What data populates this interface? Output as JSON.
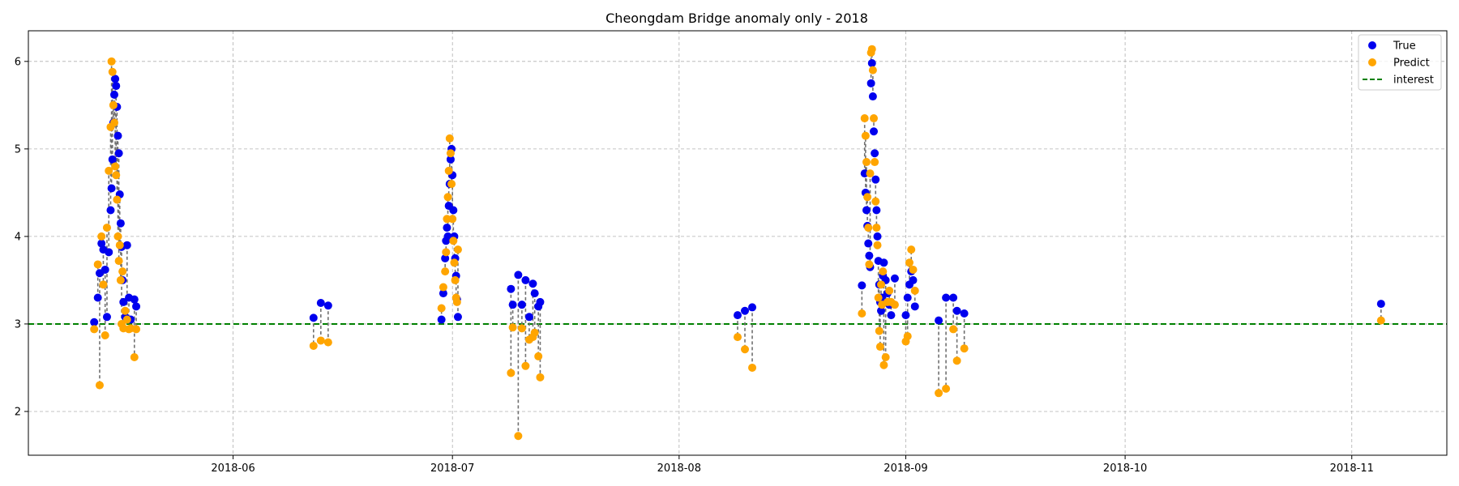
{
  "chart_data": {
    "type": "scatter",
    "title": "Cheongdam Bridge anomaly only - 2018",
    "xlabel": "",
    "ylabel": "",
    "x_axis_type": "date",
    "xlim": [
      "2018-05-04",
      "2018-11-14"
    ],
    "ylim": [
      1.5,
      6.35
    ],
    "x_ticks": [
      "2018-06-01",
      "2018-07-01",
      "2018-08-01",
      "2018-09-01",
      "2018-10-01",
      "2018-11-01"
    ],
    "x_tick_labels": [
      "2018-06",
      "2018-07",
      "2018-08",
      "2018-09",
      "2018-10",
      "2018-11"
    ],
    "y_ticks": [
      2,
      3,
      4,
      5,
      6
    ],
    "y_tick_labels": [
      "2",
      "3",
      "4",
      "5",
      "6"
    ],
    "grid": true,
    "legend_position": "top-right",
    "threshold": {
      "name": "interest",
      "value": 3.0,
      "color": "#008000",
      "style": "dashed"
    },
    "series": [
      {
        "name": "True",
        "color": "#0000ee",
        "points": [
          [
            "2018-05-13 00:00",
            3.02
          ],
          [
            "2018-05-13 12:00",
            3.3
          ],
          [
            "2018-05-13 18:00",
            3.58
          ],
          [
            "2018-05-14 00:00",
            3.92
          ],
          [
            "2018-05-14 06:00",
            3.85
          ],
          [
            "2018-05-14 12:00",
            3.62
          ],
          [
            "2018-05-14 18:00",
            3.08
          ],
          [
            "2018-05-15 00:00",
            3.82
          ],
          [
            "2018-05-15 06:00",
            4.3
          ],
          [
            "2018-05-15 09:00",
            4.55
          ],
          [
            "2018-05-15 12:00",
            4.88
          ],
          [
            "2018-05-15 15:00",
            5.3
          ],
          [
            "2018-05-15 18:00",
            5.62
          ],
          [
            "2018-05-15 21:00",
            5.8
          ],
          [
            "2018-05-16 00:00",
            5.72
          ],
          [
            "2018-05-16 03:00",
            5.48
          ],
          [
            "2018-05-16 06:00",
            5.15
          ],
          [
            "2018-05-16 09:00",
            4.95
          ],
          [
            "2018-05-16 12:00",
            4.48
          ],
          [
            "2018-05-16 15:00",
            4.15
          ],
          [
            "2018-05-16 18:00",
            3.88
          ],
          [
            "2018-05-16 21:00",
            3.5
          ],
          [
            "2018-05-17 00:00",
            3.25
          ],
          [
            "2018-05-17 06:00",
            3.08
          ],
          [
            "2018-05-17 12:00",
            3.9
          ],
          [
            "2018-05-17 18:00",
            3.3
          ],
          [
            "2018-05-18 00:00",
            3.05
          ],
          [
            "2018-05-18 12:00",
            3.28
          ],
          [
            "2018-05-18 18:00",
            3.2
          ],
          [
            "2018-06-12 00:00",
            3.07
          ],
          [
            "2018-06-13 00:00",
            3.24
          ],
          [
            "2018-06-14 00:00",
            3.21
          ],
          [
            "2018-06-29 12:00",
            3.05
          ],
          [
            "2018-06-29 18:00",
            3.35
          ],
          [
            "2018-06-30 00:00",
            3.75
          ],
          [
            "2018-06-30 03:00",
            3.95
          ],
          [
            "2018-06-30 06:00",
            4.1
          ],
          [
            "2018-06-30 09:00",
            4.0
          ],
          [
            "2018-06-30 12:00",
            4.35
          ],
          [
            "2018-06-30 15:00",
            4.6
          ],
          [
            "2018-06-30 18:00",
            4.88
          ],
          [
            "2018-06-30 21:00",
            5.0
          ],
          [
            "2018-07-01 00:00",
            4.7
          ],
          [
            "2018-07-01 03:00",
            4.3
          ],
          [
            "2018-07-01 06:00",
            4.0
          ],
          [
            "2018-07-01 09:00",
            3.75
          ],
          [
            "2018-07-01 12:00",
            3.55
          ],
          [
            "2018-07-01 15:00",
            3.28
          ],
          [
            "2018-07-01 18:00",
            3.08
          ],
          [
            "2018-07-09 00:00",
            3.4
          ],
          [
            "2018-07-09 06:00",
            3.22
          ],
          [
            "2018-07-10 00:00",
            3.56
          ],
          [
            "2018-07-10 12:00",
            3.22
          ],
          [
            "2018-07-11 00:00",
            3.5
          ],
          [
            "2018-07-11 12:00",
            3.08
          ],
          [
            "2018-07-12 00:00",
            3.46
          ],
          [
            "2018-07-12 06:00",
            3.35
          ],
          [
            "2018-07-12 18:00",
            3.2
          ],
          [
            "2018-07-13 00:00",
            3.25
          ],
          [
            "2018-08-09 00:00",
            3.1
          ],
          [
            "2018-08-10 00:00",
            3.15
          ],
          [
            "2018-08-11 00:00",
            3.19
          ],
          [
            "2018-08-26 00:00",
            3.44
          ],
          [
            "2018-08-26 09:00",
            4.72
          ],
          [
            "2018-08-26 12:00",
            4.5
          ],
          [
            "2018-08-26 15:00",
            4.3
          ],
          [
            "2018-08-26 18:00",
            4.12
          ],
          [
            "2018-08-26 21:00",
            3.92
          ],
          [
            "2018-08-27 00:00",
            3.78
          ],
          [
            "2018-08-27 03:00",
            3.65
          ],
          [
            "2018-08-27 06:00",
            5.75
          ],
          [
            "2018-08-27 09:00",
            5.98
          ],
          [
            "2018-08-27 12:00",
            5.6
          ],
          [
            "2018-08-27 15:00",
            5.2
          ],
          [
            "2018-08-27 18:00",
            4.95
          ],
          [
            "2018-08-27 21:00",
            4.65
          ],
          [
            "2018-08-28 00:00",
            4.3
          ],
          [
            "2018-08-28 03:00",
            4.0
          ],
          [
            "2018-08-28 06:00",
            3.72
          ],
          [
            "2018-08-28 09:00",
            3.45
          ],
          [
            "2018-08-28 12:00",
            3.25
          ],
          [
            "2018-08-28 15:00",
            3.15
          ],
          [
            "2018-08-28 18:00",
            3.3
          ],
          [
            "2018-08-28 21:00",
            3.55
          ],
          [
            "2018-08-29 00:00",
            3.7
          ],
          [
            "2018-08-29 06:00",
            3.5
          ],
          [
            "2018-08-29 12:00",
            3.35
          ],
          [
            "2018-08-29 18:00",
            3.22
          ],
          [
            "2018-08-30 00:00",
            3.1
          ],
          [
            "2018-08-30 12:00",
            3.52
          ],
          [
            "2018-09-01 00:00",
            3.1
          ],
          [
            "2018-09-01 06:00",
            3.3
          ],
          [
            "2018-09-01 12:00",
            3.45
          ],
          [
            "2018-09-01 18:00",
            3.6
          ],
          [
            "2018-09-02 00:00",
            3.5
          ],
          [
            "2018-09-02 06:00",
            3.2
          ],
          [
            "2018-09-05 12:00",
            3.04
          ],
          [
            "2018-09-06 12:00",
            3.3
          ],
          [
            "2018-09-07 12:00",
            3.3
          ],
          [
            "2018-09-08 00:00",
            3.15
          ],
          [
            "2018-09-09 00:00",
            3.12
          ],
          [
            "2018-11-05 00:00",
            3.23
          ]
        ]
      },
      {
        "name": "Predict",
        "color": "#ffa500",
        "points": [
          [
            "2018-05-13 00:00",
            2.94
          ],
          [
            "2018-05-13 12:00",
            3.68
          ],
          [
            "2018-05-13 18:00",
            2.3
          ],
          [
            "2018-05-14 00:00",
            4.0
          ],
          [
            "2018-05-14 06:00",
            3.45
          ],
          [
            "2018-05-14 12:00",
            2.87
          ],
          [
            "2018-05-14 18:00",
            4.1
          ],
          [
            "2018-05-15 00:00",
            4.75
          ],
          [
            "2018-05-15 06:00",
            5.25
          ],
          [
            "2018-05-15 09:00",
            6.0
          ],
          [
            "2018-05-15 12:00",
            5.88
          ],
          [
            "2018-05-15 15:00",
            5.5
          ],
          [
            "2018-05-15 18:00",
            5.3
          ],
          [
            "2018-05-15 21:00",
            4.8
          ],
          [
            "2018-05-16 00:00",
            4.7
          ],
          [
            "2018-05-16 03:00",
            4.42
          ],
          [
            "2018-05-16 06:00",
            4.0
          ],
          [
            "2018-05-16 09:00",
            3.72
          ],
          [
            "2018-05-16 12:00",
            3.9
          ],
          [
            "2018-05-16 15:00",
            3.5
          ],
          [
            "2018-05-16 18:00",
            3.0
          ],
          [
            "2018-05-16 21:00",
            3.6
          ],
          [
            "2018-05-17 00:00",
            2.95
          ],
          [
            "2018-05-17 06:00",
            3.15
          ],
          [
            "2018-05-17 12:00",
            3.05
          ],
          [
            "2018-05-17 18:00",
            2.94
          ],
          [
            "2018-05-18 00:00",
            2.95
          ],
          [
            "2018-05-18 12:00",
            2.62
          ],
          [
            "2018-05-18 18:00",
            2.94
          ],
          [
            "2018-06-12 00:00",
            2.75
          ],
          [
            "2018-06-13 00:00",
            2.81
          ],
          [
            "2018-06-14 00:00",
            2.79
          ],
          [
            "2018-06-29 12:00",
            3.18
          ],
          [
            "2018-06-29 18:00",
            3.42
          ],
          [
            "2018-06-30 00:00",
            3.6
          ],
          [
            "2018-06-30 03:00",
            3.82
          ],
          [
            "2018-06-30 06:00",
            4.2
          ],
          [
            "2018-06-30 09:00",
            4.45
          ],
          [
            "2018-06-30 12:00",
            4.75
          ],
          [
            "2018-06-30 15:00",
            5.12
          ],
          [
            "2018-06-30 18:00",
            4.95
          ],
          [
            "2018-06-30 21:00",
            4.6
          ],
          [
            "2018-07-01 00:00",
            4.2
          ],
          [
            "2018-07-01 03:00",
            3.95
          ],
          [
            "2018-07-01 06:00",
            3.7
          ],
          [
            "2018-07-01 09:00",
            3.5
          ],
          [
            "2018-07-01 12:00",
            3.3
          ],
          [
            "2018-07-01 15:00",
            3.25
          ],
          [
            "2018-07-01 18:00",
            3.85
          ],
          [
            "2018-07-09 00:00",
            2.44
          ],
          [
            "2018-07-09 06:00",
            2.96
          ],
          [
            "2018-07-10 00:00",
            1.72
          ],
          [
            "2018-07-10 12:00",
            2.95
          ],
          [
            "2018-07-11 00:00",
            2.52
          ],
          [
            "2018-07-11 12:00",
            2.82
          ],
          [
            "2018-07-12 00:00",
            2.85
          ],
          [
            "2018-07-12 06:00",
            2.9
          ],
          [
            "2018-07-12 18:00",
            2.63
          ],
          [
            "2018-07-13 00:00",
            2.39
          ],
          [
            "2018-08-09 00:00",
            2.85
          ],
          [
            "2018-08-10 00:00",
            2.71
          ],
          [
            "2018-08-11 00:00",
            2.5
          ],
          [
            "2018-08-26 00:00",
            3.12
          ],
          [
            "2018-08-26 09:00",
            5.35
          ],
          [
            "2018-08-26 12:00",
            5.15
          ],
          [
            "2018-08-26 15:00",
            4.85
          ],
          [
            "2018-08-26 18:00",
            4.45
          ],
          [
            "2018-08-26 21:00",
            4.1
          ],
          [
            "2018-08-27 00:00",
            3.68
          ],
          [
            "2018-08-27 03:00",
            4.72
          ],
          [
            "2018-08-27 06:00",
            6.1
          ],
          [
            "2018-08-27 09:00",
            6.14
          ],
          [
            "2018-08-27 12:00",
            5.9
          ],
          [
            "2018-08-27 15:00",
            5.35
          ],
          [
            "2018-08-27 18:00",
            4.85
          ],
          [
            "2018-08-27 21:00",
            4.4
          ],
          [
            "2018-08-28 00:00",
            4.1
          ],
          [
            "2018-08-28 03:00",
            3.9
          ],
          [
            "2018-08-28 06:00",
            3.3
          ],
          [
            "2018-08-28 09:00",
            2.92
          ],
          [
            "2018-08-28 12:00",
            2.74
          ],
          [
            "2018-08-28 15:00",
            3.45
          ],
          [
            "2018-08-28 18:00",
            3.22
          ],
          [
            "2018-08-28 21:00",
            3.6
          ],
          [
            "2018-08-29 00:00",
            2.53
          ],
          [
            "2018-08-29 06:00",
            2.62
          ],
          [
            "2018-08-29 12:00",
            3.25
          ],
          [
            "2018-08-29 18:00",
            3.38
          ],
          [
            "2018-08-30 00:00",
            3.25
          ],
          [
            "2018-08-30 12:00",
            3.22
          ],
          [
            "2018-09-01 00:00",
            2.8
          ],
          [
            "2018-09-01 06:00",
            2.86
          ],
          [
            "2018-09-01 12:00",
            3.7
          ],
          [
            "2018-09-01 18:00",
            3.85
          ],
          [
            "2018-09-02 00:00",
            3.62
          ],
          [
            "2018-09-02 06:00",
            3.38
          ],
          [
            "2018-09-05 12:00",
            2.21
          ],
          [
            "2018-09-06 12:00",
            2.26
          ],
          [
            "2018-09-07 12:00",
            2.94
          ],
          [
            "2018-09-08 00:00",
            2.58
          ],
          [
            "2018-09-09 00:00",
            2.72
          ],
          [
            "2018-11-05 00:00",
            3.04
          ]
        ]
      }
    ],
    "legend": [
      {
        "label": "True",
        "kind": "dot",
        "color": "#0000ee"
      },
      {
        "label": "Predict",
        "kind": "dot",
        "color": "#ffa500"
      },
      {
        "label": "interest",
        "kind": "dashed-line",
        "color": "#008000"
      }
    ]
  }
}
